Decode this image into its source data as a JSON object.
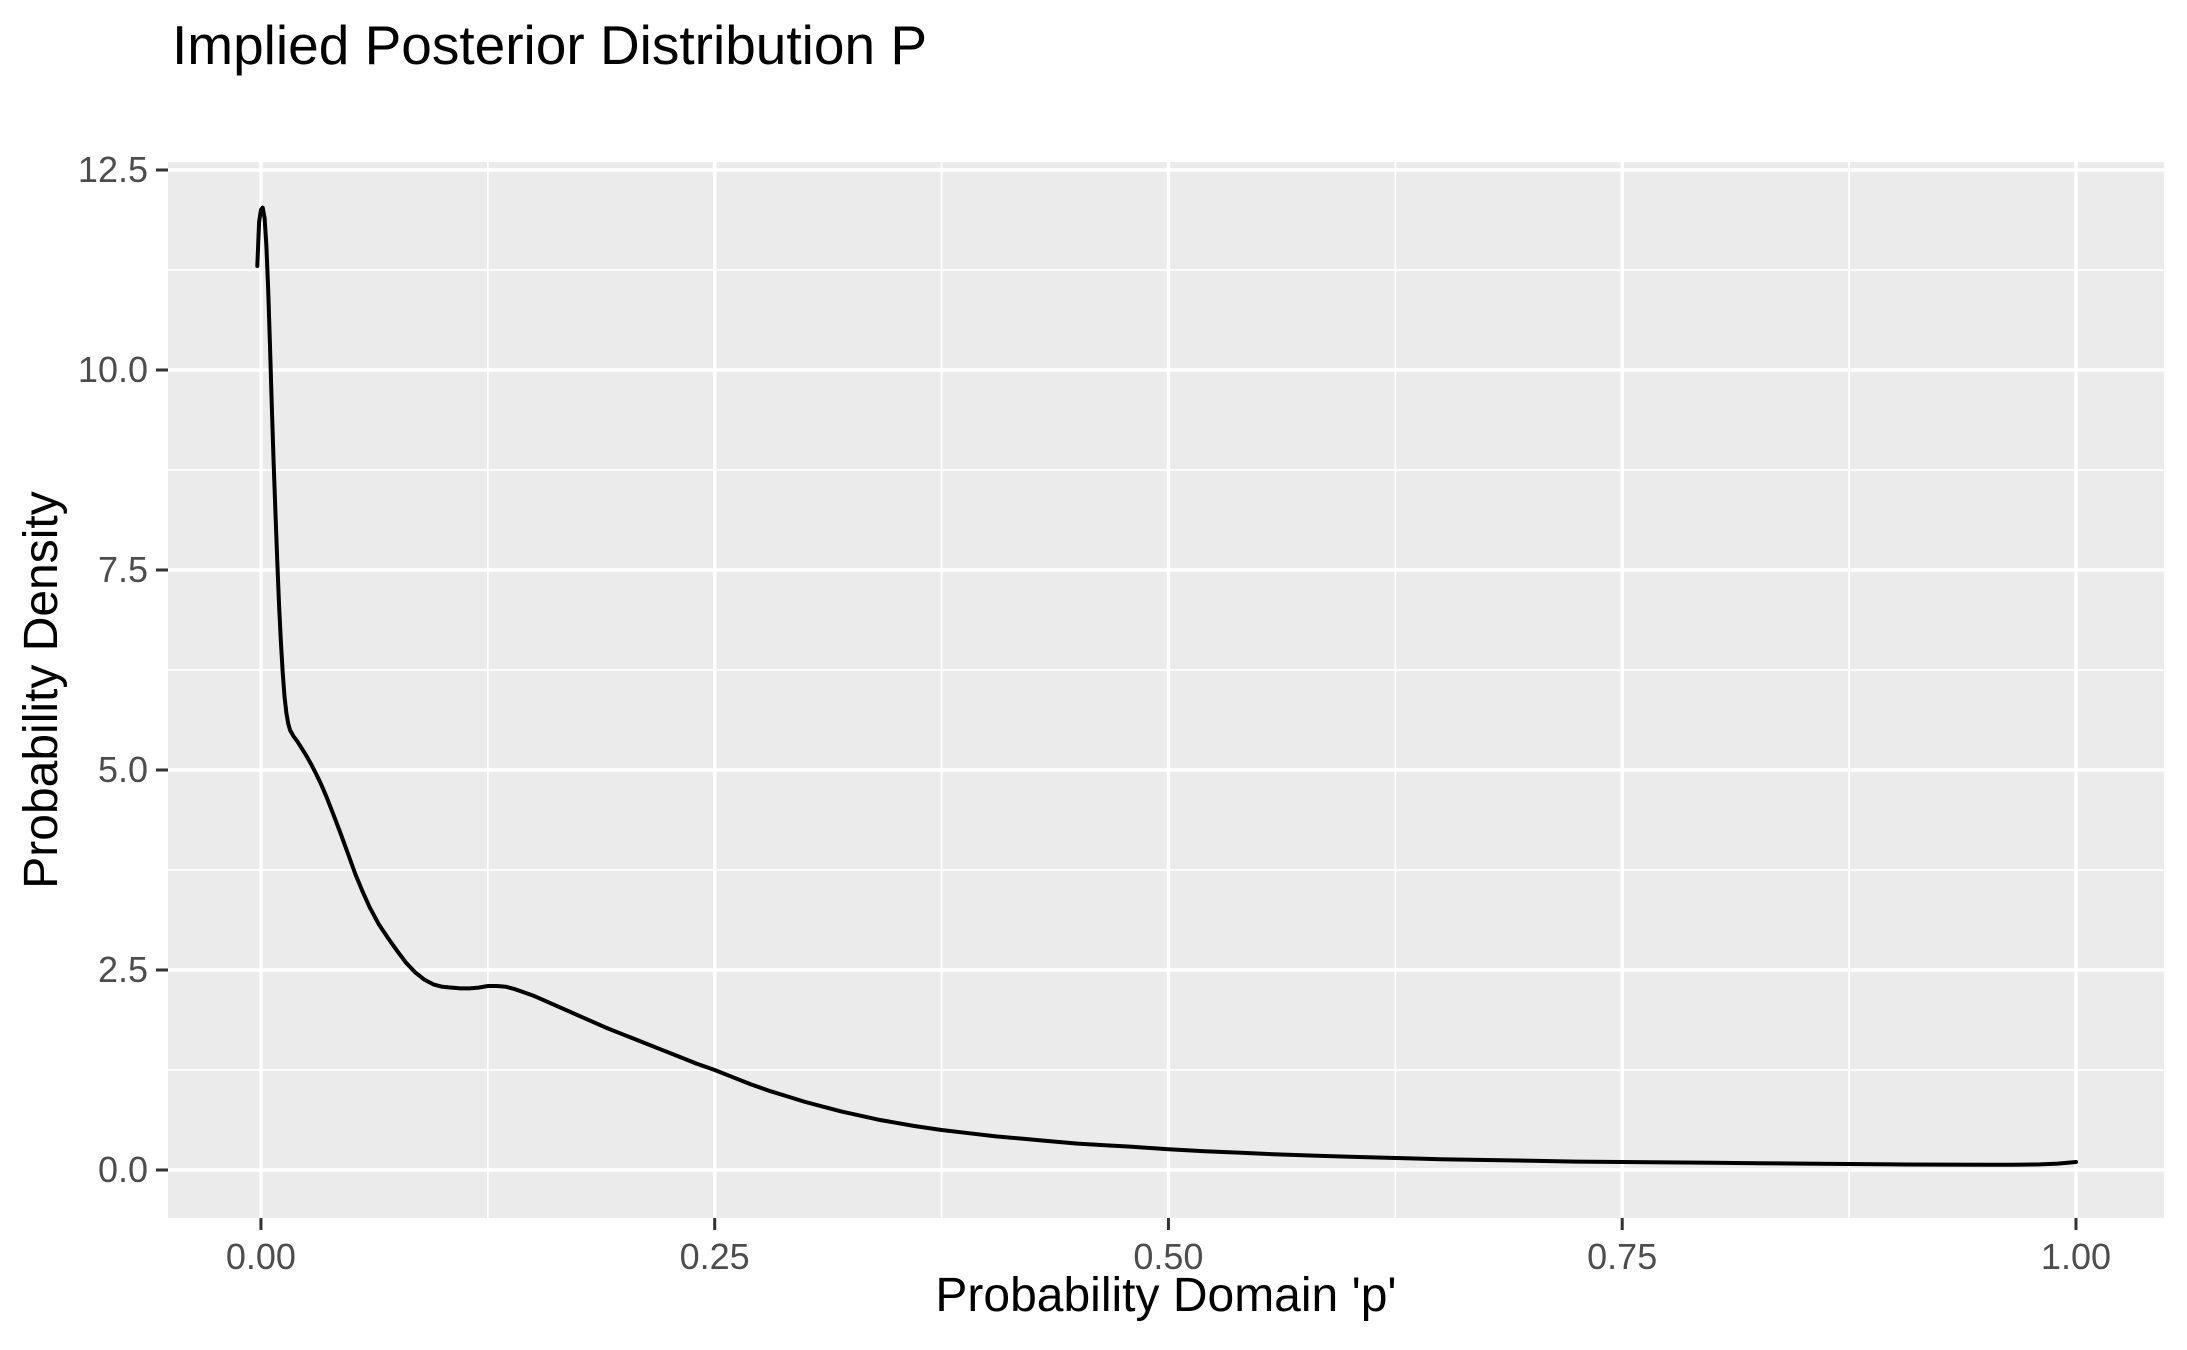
{
  "title": "Implied Posterior Distribution P",
  "colors": {
    "background": "#FFFFFF",
    "panel_bg": "#EBEBEB",
    "grid_major": "#FFFFFF",
    "grid_minor": "#FFFFFF",
    "curve": "#000000",
    "tick_label": "#4D4D4D",
    "tick_mark": "#333333",
    "text": "#000000"
  },
  "chart_data": {
    "type": "line",
    "title": "Implied Posterior Distribution P",
    "xlabel": "Probability Domain 'p'",
    "ylabel": "Probability Density",
    "xlim": [
      -0.0512,
      1.0485
    ],
    "ylim": [
      -0.6,
      12.6
    ],
    "grid": true,
    "legend": "none",
    "x_ticks": {
      "values": [
        0,
        0.25,
        0.5,
        0.75,
        1.0
      ],
      "labels": [
        "0.00",
        "0.25",
        "0.50",
        "0.75",
        "1.00"
      ]
    },
    "y_ticks": {
      "values": [
        0,
        2.5,
        5.0,
        7.5,
        10.0,
        12.5
      ],
      "labels": [
        "0.0",
        "2.5",
        "5.0",
        "7.5",
        "10.0",
        "12.5"
      ]
    },
    "x_minor": [
      0.125,
      0.375,
      0.625,
      0.875
    ],
    "y_minor": [
      1.25,
      3.75,
      6.25,
      8.75,
      11.25
    ],
    "series": [
      {
        "name": "posterior density",
        "points": [
          [
            -0.002,
            11.3
          ],
          [
            -0.001,
            11.85
          ],
          [
            0.0,
            12.0
          ],
          [
            0.001,
            12.03
          ],
          [
            0.002,
            11.9
          ],
          [
            0.003,
            11.55
          ],
          [
            0.004,
            11.0
          ],
          [
            0.005,
            10.3
          ],
          [
            0.006,
            9.55
          ],
          [
            0.007,
            8.85
          ],
          [
            0.008,
            8.2
          ],
          [
            0.009,
            7.6
          ],
          [
            0.01,
            7.05
          ],
          [
            0.011,
            6.6
          ],
          [
            0.012,
            6.22
          ],
          [
            0.013,
            5.92
          ],
          [
            0.014,
            5.72
          ],
          [
            0.015,
            5.58
          ],
          [
            0.016,
            5.5
          ],
          [
            0.018,
            5.42
          ],
          [
            0.02,
            5.36
          ],
          [
            0.0225,
            5.27
          ],
          [
            0.025,
            5.18
          ],
          [
            0.0275,
            5.08
          ],
          [
            0.03,
            4.97
          ],
          [
            0.033,
            4.83
          ],
          [
            0.036,
            4.67
          ],
          [
            0.04,
            4.44
          ],
          [
            0.044,
            4.2
          ],
          [
            0.048,
            3.95
          ],
          [
            0.052,
            3.7
          ],
          [
            0.056,
            3.48
          ],
          [
            0.06,
            3.28
          ],
          [
            0.065,
            3.07
          ],
          [
            0.07,
            2.9
          ],
          [
            0.075,
            2.74
          ],
          [
            0.08,
            2.59
          ],
          [
            0.085,
            2.47
          ],
          [
            0.09,
            2.38
          ],
          [
            0.095,
            2.32
          ],
          [
            0.1,
            2.29
          ],
          [
            0.105,
            2.28
          ],
          [
            0.11,
            2.27
          ],
          [
            0.115,
            2.27
          ],
          [
            0.12,
            2.28
          ],
          [
            0.125,
            2.3
          ],
          [
            0.13,
            2.3
          ],
          [
            0.135,
            2.29
          ],
          [
            0.14,
            2.26
          ],
          [
            0.145,
            2.22
          ],
          [
            0.15,
            2.18
          ],
          [
            0.155,
            2.13
          ],
          [
            0.16,
            2.08
          ],
          [
            0.17,
            1.98
          ],
          [
            0.18,
            1.88
          ],
          [
            0.19,
            1.78
          ],
          [
            0.2,
            1.69
          ],
          [
            0.21,
            1.6
          ],
          [
            0.22,
            1.51
          ],
          [
            0.23,
            1.42
          ],
          [
            0.24,
            1.33
          ],
          [
            0.25,
            1.25
          ],
          [
            0.26,
            1.16
          ],
          [
            0.27,
            1.07
          ],
          [
            0.28,
            0.99
          ],
          [
            0.29,
            0.92
          ],
          [
            0.3,
            0.85
          ],
          [
            0.31,
            0.79
          ],
          [
            0.32,
            0.73
          ],
          [
            0.33,
            0.68
          ],
          [
            0.34,
            0.63
          ],
          [
            0.35,
            0.59
          ],
          [
            0.36,
            0.55
          ],
          [
            0.375,
            0.5
          ],
          [
            0.39,
            0.46
          ],
          [
            0.405,
            0.42
          ],
          [
            0.42,
            0.39
          ],
          [
            0.435,
            0.36
          ],
          [
            0.45,
            0.33
          ],
          [
            0.465,
            0.31
          ],
          [
            0.48,
            0.29
          ],
          [
            0.5,
            0.26
          ],
          [
            0.52,
            0.235
          ],
          [
            0.54,
            0.215
          ],
          [
            0.56,
            0.195
          ],
          [
            0.58,
            0.18
          ],
          [
            0.6,
            0.165
          ],
          [
            0.625,
            0.15
          ],
          [
            0.65,
            0.135
          ],
          [
            0.675,
            0.125
          ],
          [
            0.7,
            0.115
          ],
          [
            0.725,
            0.105
          ],
          [
            0.75,
            0.1
          ],
          [
            0.775,
            0.095
          ],
          [
            0.8,
            0.09
          ],
          [
            0.825,
            0.085
          ],
          [
            0.85,
            0.08
          ],
          [
            0.875,
            0.075
          ],
          [
            0.9,
            0.07
          ],
          [
            0.925,
            0.068
          ],
          [
            0.95,
            0.066
          ],
          [
            0.965,
            0.066
          ],
          [
            0.98,
            0.07
          ],
          [
            0.99,
            0.08
          ],
          [
            1.0,
            0.1
          ]
        ]
      }
    ]
  }
}
